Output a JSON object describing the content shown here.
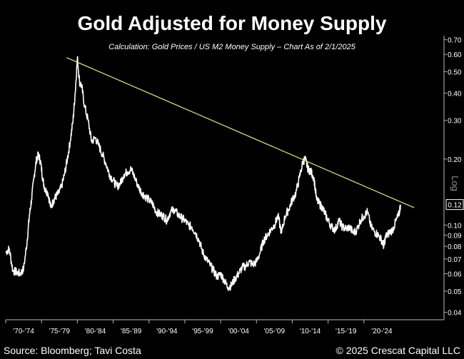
{
  "chart_data": {
    "type": "line",
    "title": "Gold Adjusted for Money Supply",
    "subtitle": "Calculation: Gold Prices / US M2 Money Supply – Chart As of 2/1/2025",
    "scale": "log",
    "scale_label": "Log",
    "ylim": [
      0.037,
      0.73
    ],
    "y_ticks": [
      0.04,
      0.05,
      0.06,
      0.07,
      0.08,
      0.09,
      0.1,
      0.2,
      0.3,
      0.4,
      0.5,
      0.6,
      0.7
    ],
    "y_tick_labels": [
      "0.04",
      "0.05",
      "0.06",
      "0.07",
      "0.08",
      "0.09",
      "0.10",
      "0.20",
      "0.30",
      "0.40",
      "0.50",
      "0.60",
      "0.70"
    ],
    "last_value_label": "0.12",
    "last_value": 0.124,
    "x_period_labels": [
      "'70-'74",
      "'75-'79",
      "'80-'84",
      "'85-'89",
      "'90-'94",
      "'95-'99",
      "'00-'04",
      "'05-'09",
      "'10-'14",
      "'15-'19",
      "'20-'24"
    ],
    "xlim": [
      1970,
      2025.5
    ],
    "grid": false,
    "series": [
      {
        "values": [
          [
            1970.0,
            0.075
          ],
          [
            1970.5,
            0.078
          ],
          [
            1971.0,
            0.062
          ],
          [
            1971.5,
            0.061
          ],
          [
            1972.0,
            0.06
          ],
          [
            1972.5,
            0.063
          ],
          [
            1973.0,
            0.085
          ],
          [
            1973.3,
            0.11
          ],
          [
            1973.6,
            0.13
          ],
          [
            1974.0,
            0.17
          ],
          [
            1974.3,
            0.2
          ],
          [
            1974.6,
            0.21
          ],
          [
            1974.9,
            0.19
          ],
          [
            1975.2,
            0.16
          ],
          [
            1975.5,
            0.145
          ],
          [
            1975.9,
            0.14
          ],
          [
            1976.3,
            0.12
          ],
          [
            1976.7,
            0.13
          ],
          [
            1977.0,
            0.135
          ],
          [
            1977.4,
            0.14
          ],
          [
            1977.8,
            0.15
          ],
          [
            1978.2,
            0.17
          ],
          [
            1978.6,
            0.2
          ],
          [
            1979.0,
            0.24
          ],
          [
            1979.4,
            0.3
          ],
          [
            1979.7,
            0.4
          ],
          [
            1980.0,
            0.58
          ],
          [
            1980.3,
            0.45
          ],
          [
            1980.6,
            0.43
          ],
          [
            1981.0,
            0.35
          ],
          [
            1981.5,
            0.3
          ],
          [
            1982.0,
            0.24
          ],
          [
            1982.5,
            0.25
          ],
          [
            1983.0,
            0.23
          ],
          [
            1983.5,
            0.21
          ],
          [
            1984.0,
            0.19
          ],
          [
            1984.5,
            0.17
          ],
          [
            1985.0,
            0.16
          ],
          [
            1985.5,
            0.15
          ],
          [
            1986.0,
            0.155
          ],
          [
            1986.5,
            0.17
          ],
          [
            1987.0,
            0.175
          ],
          [
            1987.5,
            0.18
          ],
          [
            1988.0,
            0.165
          ],
          [
            1988.5,
            0.15
          ],
          [
            1989.0,
            0.14
          ],
          [
            1989.5,
            0.135
          ],
          [
            1990.0,
            0.13
          ],
          [
            1990.5,
            0.125
          ],
          [
            1991.0,
            0.115
          ],
          [
            1991.5,
            0.112
          ],
          [
            1992.0,
            0.11
          ],
          [
            1992.5,
            0.105
          ],
          [
            1993.0,
            0.115
          ],
          [
            1993.5,
            0.118
          ],
          [
            1994.0,
            0.112
          ],
          [
            1994.5,
            0.108
          ],
          [
            1995.0,
            0.105
          ],
          [
            1995.5,
            0.1
          ],
          [
            1996.0,
            0.098
          ],
          [
            1996.5,
            0.092
          ],
          [
            1997.0,
            0.085
          ],
          [
            1997.5,
            0.075
          ],
          [
            1998.0,
            0.07
          ],
          [
            1998.5,
            0.066
          ],
          [
            1999.0,
            0.062
          ],
          [
            1999.5,
            0.058
          ],
          [
            2000.0,
            0.06
          ],
          [
            2000.5,
            0.056
          ],
          [
            2001.0,
            0.052
          ],
          [
            2001.5,
            0.053
          ],
          [
            2002.0,
            0.057
          ],
          [
            2002.5,
            0.06
          ],
          [
            2003.0,
            0.064
          ],
          [
            2003.5,
            0.065
          ],
          [
            2004.0,
            0.068
          ],
          [
            2004.5,
            0.066
          ],
          [
            2005.0,
            0.068
          ],
          [
            2005.5,
            0.075
          ],
          [
            2006.0,
            0.085
          ],
          [
            2006.5,
            0.09
          ],
          [
            2007.0,
            0.095
          ],
          [
            2007.5,
            0.1
          ],
          [
            2008.0,
            0.11
          ],
          [
            2008.5,
            0.092
          ],
          [
            2009.0,
            0.11
          ],
          [
            2009.5,
            0.118
          ],
          [
            2010.0,
            0.13
          ],
          [
            2010.5,
            0.14
          ],
          [
            2011.0,
            0.165
          ],
          [
            2011.5,
            0.195
          ],
          [
            2011.8,
            0.2
          ],
          [
            2012.2,
            0.18
          ],
          [
            2012.6,
            0.175
          ],
          [
            2013.0,
            0.165
          ],
          [
            2013.4,
            0.13
          ],
          [
            2013.8,
            0.125
          ],
          [
            2014.2,
            0.12
          ],
          [
            2014.6,
            0.112
          ],
          [
            2015.0,
            0.105
          ],
          [
            2015.5,
            0.098
          ],
          [
            2016.0,
            0.095
          ],
          [
            2016.5,
            0.105
          ],
          [
            2017.0,
            0.098
          ],
          [
            2017.5,
            0.096
          ],
          [
            2018.0,
            0.098
          ],
          [
            2018.5,
            0.092
          ],
          [
            2019.0,
            0.095
          ],
          [
            2019.5,
            0.105
          ],
          [
            2020.0,
            0.11
          ],
          [
            2020.5,
            0.115
          ],
          [
            2021.0,
            0.098
          ],
          [
            2021.5,
            0.093
          ],
          [
            2022.0,
            0.09
          ],
          [
            2022.5,
            0.085
          ],
          [
            2022.8,
            0.08
          ],
          [
            2023.0,
            0.088
          ],
          [
            2023.5,
            0.092
          ],
          [
            2024.0,
            0.095
          ],
          [
            2024.5,
            0.105
          ],
          [
            2024.9,
            0.112
          ],
          [
            2025.1,
            0.124
          ]
        ]
      }
    ],
    "trendline": {
      "from": [
        1978.5,
        0.58
      ],
      "to": [
        2027.0,
        0.12
      ]
    }
  },
  "source_text": "Source: Bloomberg; Tavi Costa",
  "copyright_text": "© 2025 Crescat Capital LLC",
  "colors": {
    "background": "#000000",
    "line": "#ffffff",
    "trendline": "#e9e48a",
    "axis": "#b8b8b8",
    "text": "#ffffff"
  }
}
